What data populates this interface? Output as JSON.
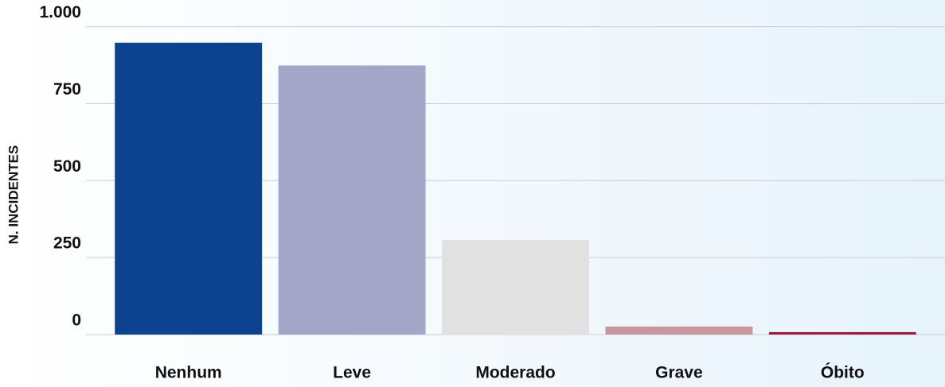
{
  "chart_data": {
    "type": "bar",
    "y_label": "N. INCIDENTES",
    "categories": [
      "Nenhum",
      "Leve",
      "Moderado",
      "Grave",
      "Óbito"
    ],
    "values": [
      948,
      874,
      307,
      26,
      8
    ],
    "colors": [
      "#0d4291",
      "#a3a6c9",
      "#e1e1e1",
      "#c9969e",
      "#9b1a3e"
    ],
    "ylim": [
      0,
      1000
    ],
    "yticks": [
      0,
      250,
      500,
      750,
      {
        "value": 1000,
        "label": "1.000"
      }
    ],
    "grid": true
  }
}
